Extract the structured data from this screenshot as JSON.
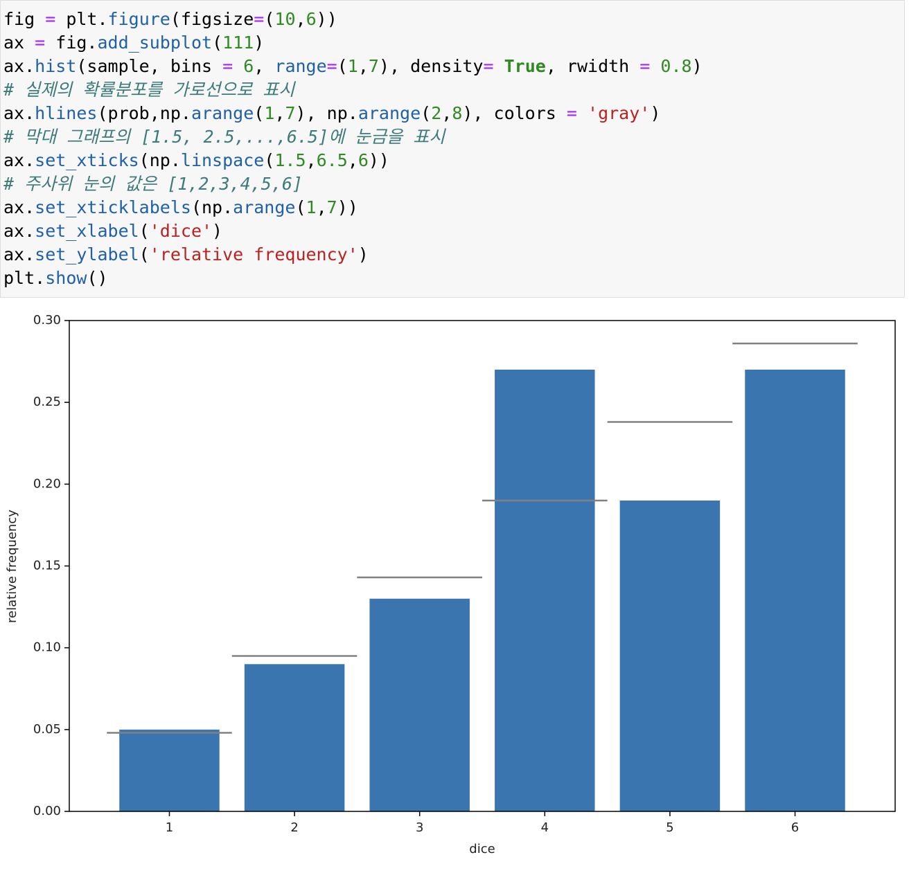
{
  "code": [
    "fig = plt.figure(figsize=(10,6))",
    "ax = fig.add_subplot(111)",
    "ax.hist(sample, bins = 6, range=(1,7), density= True, rwidth = 0.8)",
    "# 실제의 확률분포를 가로선으로 표시",
    "ax.hlines(prob,np.arange(1,7), np.arange(2,8), colors = 'gray')",
    "# 막대 그래프의 [1.5, 2.5,...,6.5]에 눈금을 표시",
    "ax.set_xticks(np.linspace(1.5,6.5,6))",
    "# 주사위 눈의 값은 [1,2,3,4,5,6]",
    "ax.set_xticklabels(np.arange(1,7))",
    "ax.set_xlabel('dice')",
    "ax.set_ylabel('relative frequency')",
    "plt.show()"
  ],
  "chart_data": {
    "type": "histogram",
    "x_label": "dice",
    "y_label": "relative frequency",
    "bins": [
      1,
      2,
      3,
      4,
      5,
      6,
      7
    ],
    "values": [
      0.05,
      0.09,
      0.13,
      0.27,
      0.19,
      0.27
    ],
    "color": "#3a75b0",
    "rwidth": 0.8,
    "hlines": {
      "values": [
        0.048,
        0.095,
        0.143,
        0.19,
        0.238,
        0.286
      ],
      "color": "#808080"
    },
    "xlim": [
      0.7,
      7.3
    ],
    "xticks": [
      {
        "value": 1.5,
        "label": "1"
      },
      {
        "value": 2.5,
        "label": "2"
      },
      {
        "value": 3.5,
        "label": "3"
      },
      {
        "value": 4.5,
        "label": "4"
      },
      {
        "value": 5.5,
        "label": "5"
      },
      {
        "value": 6.5,
        "label": "6"
      }
    ],
    "ylim": [
      0,
      0.3
    ],
    "yticks": [
      {
        "value": 0,
        "label": "0.00"
      },
      {
        "value": 0.05,
        "label": "0.05"
      },
      {
        "value": 0.1,
        "label": "0.10"
      },
      {
        "value": 0.15,
        "label": "0.15"
      },
      {
        "value": 0.2,
        "label": "0.20"
      },
      {
        "value": 0.25,
        "label": "0.25"
      },
      {
        "value": 0.3,
        "label": "0.30"
      }
    ]
  }
}
